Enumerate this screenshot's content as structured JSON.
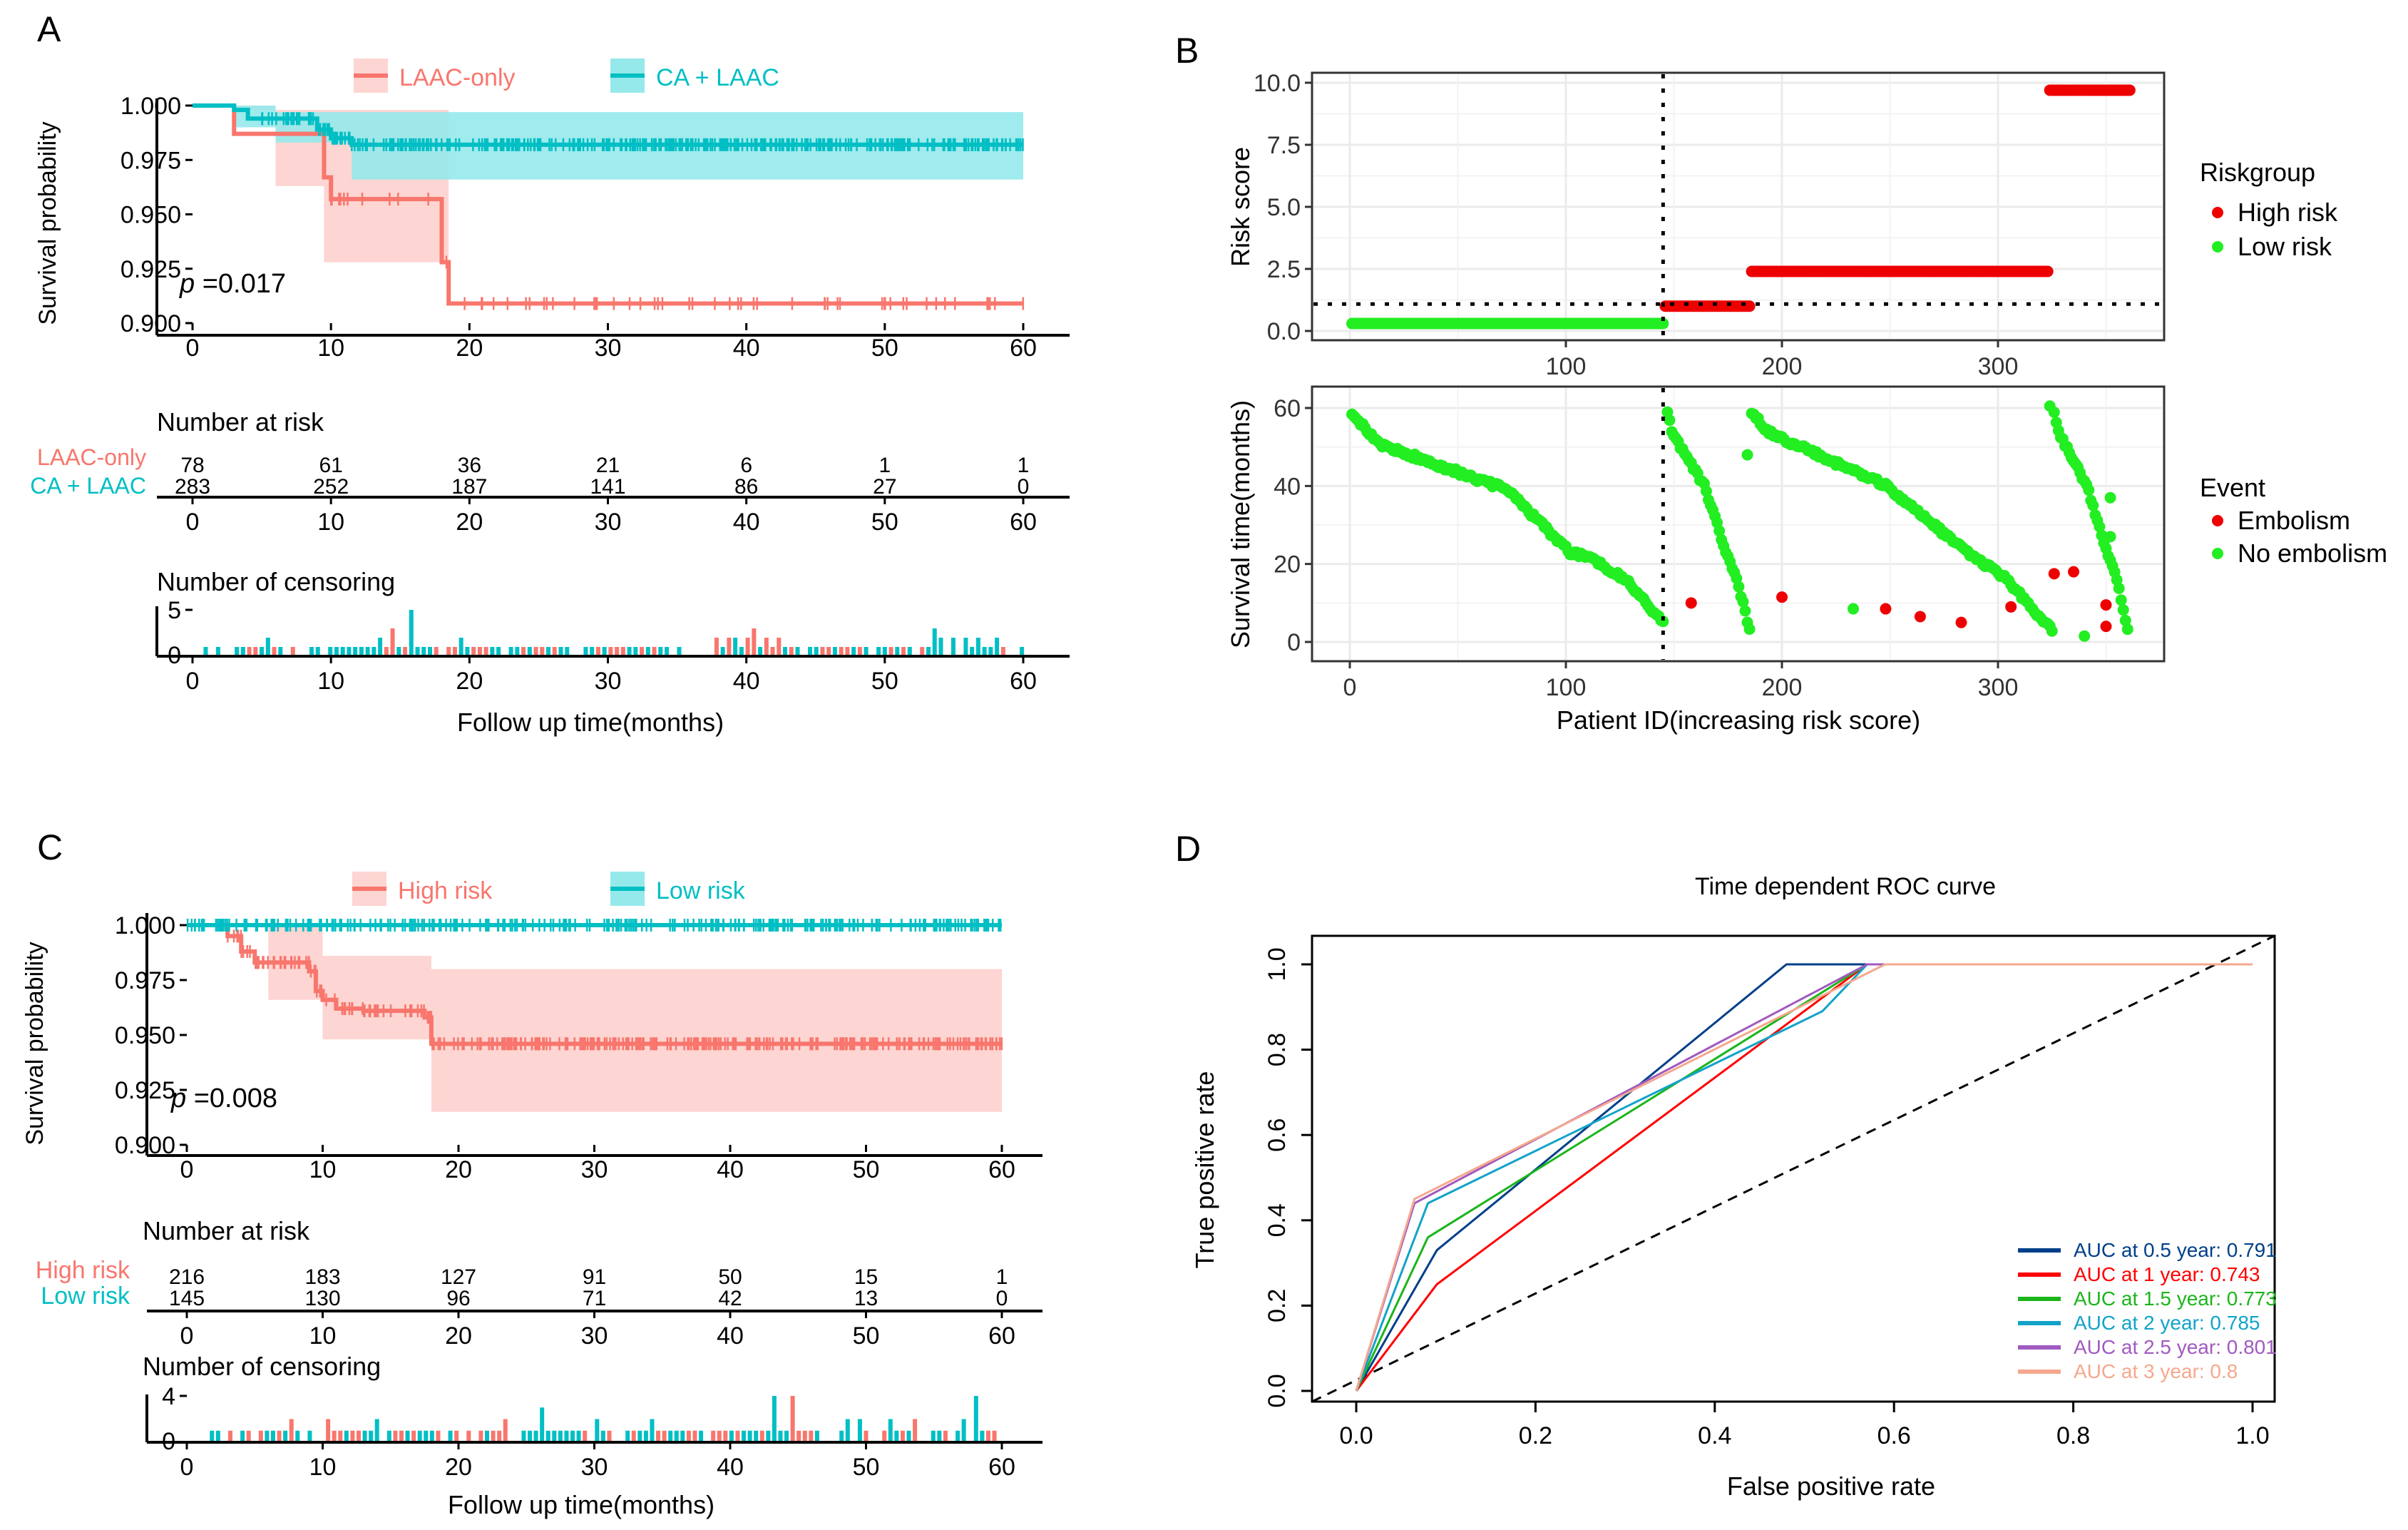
{
  "colors": {
    "red": "#F8766D",
    "red_band": "#FDD5D2",
    "cyan": "#00BFC4",
    "cyan_band": "#96E9EB",
    "risk_red": "#EE0000",
    "risk_green": "#22EE22",
    "dark": "#000000",
    "grid": "#EBEBEB",
    "roc_colors": [
      "#003F8A",
      "#FF0000",
      "#1BB51B",
      "#12A3C8",
      "#A05AC0",
      "#F5A88E"
    ]
  },
  "panels": {
    "A": {
      "label": "A",
      "legend": [
        "LAAC-only",
        "CA + LAAC"
      ],
      "ylabel": "Survival probability",
      "yticks": [
        "1.000",
        "0.975",
        "0.950",
        "0.925",
        "0.900"
      ],
      "xticks": [
        "0",
        "10",
        "20",
        "30",
        "40",
        "50",
        "60"
      ],
      "pvalue_prefix": "p",
      "pvalue_text": " =0.017",
      "risk_title": "Number at risk",
      "risk_rows": [
        {
          "name": "LAAC-only",
          "values": [
            "78",
            "61",
            "36",
            "21",
            "6",
            "1",
            "1"
          ]
        },
        {
          "name": "CA + LAAC",
          "values": [
            "283",
            "252",
            "187",
            "141",
            "86",
            "27",
            "0"
          ]
        }
      ],
      "censor_title": "Number of censoring",
      "censor_yticks": [
        "5",
        "0"
      ],
      "xlabel": "Follow up time(months)"
    },
    "B": {
      "label": "B",
      "top_ylabel": "Risk score",
      "top_yticks": [
        "10.0",
        "7.5",
        "5.0",
        "2.5",
        "0.0"
      ],
      "top_xticks": [
        "100",
        "200",
        "300"
      ],
      "bottom_ylabel": "Survival time(months)",
      "bottom_yticks": [
        "60",
        "40",
        "20",
        "0"
      ],
      "bottom_xticks": [
        "0",
        "100",
        "200",
        "300"
      ],
      "xlabel": "Patient ID(increasing risk score)",
      "legend1_title": "Riskgroup",
      "legend1": [
        "High risk",
        "Low risk"
      ],
      "legend2_title": "Event",
      "legend2": [
        "Embolism",
        "No embolism"
      ]
    },
    "C": {
      "label": "C",
      "legend": [
        "High risk",
        "Low risk"
      ],
      "ylabel": "Survival probability",
      "yticks": [
        "1.000",
        "0.975",
        "0.950",
        "0.925",
        "0.900"
      ],
      "xticks": [
        "0",
        "10",
        "20",
        "30",
        "40",
        "50",
        "60"
      ],
      "pvalue_prefix": "p",
      "pvalue_text": " =0.008",
      "risk_title": "Number at risk",
      "risk_rows": [
        {
          "name": "High risk",
          "values": [
            "216",
            "183",
            "127",
            "91",
            "50",
            "15",
            "1"
          ]
        },
        {
          "name": "Low risk",
          "values": [
            "145",
            "130",
            "96",
            "71",
            "42",
            "13",
            "0"
          ]
        }
      ],
      "censor_title": "Number of censoring",
      "censor_yticks": [
        "4",
        "0"
      ],
      "xlabel": "Follow up time(months)"
    },
    "D": {
      "label": "D",
      "title": "Time dependent ROC curve",
      "xlabel": "False positive rate",
      "ylabel": "True positive rate",
      "ticks": [
        "0.0",
        "0.2",
        "0.4",
        "0.6",
        "0.8",
        "1.0"
      ],
      "legend": [
        "AUC at 0.5 year: 0.791",
        "AUC at 1 year: 0.743",
        "AUC at 1.5 year: 0.773",
        "AUC at 2 year: 0.785",
        "AUC at 2.5 year: 0.801",
        "AUC at 3 year: 0.8"
      ]
    }
  },
  "chart_data": [
    {
      "panel": "A",
      "type": "line",
      "title": "",
      "xlabel": "Follow up time(months)",
      "ylabel": "Survival probability",
      "xlim": [
        0,
        60
      ],
      "ylim": [
        0.9,
        1.0
      ],
      "series": [
        {
          "name": "LAAC-only",
          "steps": [
            [
              0,
              1.0
            ],
            [
              3,
              0.987
            ],
            [
              9.5,
              0.967
            ],
            [
              10,
              0.957
            ],
            [
              18,
              0.928
            ],
            [
              18.5,
              0.909
            ],
            [
              60,
              0.909
            ]
          ],
          "ci_lower": [
            [
              0,
              1.0
            ],
            [
              6,
              0.963
            ],
            [
              9.5,
              0.928
            ],
            [
              18.5,
              0.909
            ],
            [
              60,
              0.909
            ]
          ],
          "ci_upper": [
            [
              0,
              1.0
            ],
            [
              3,
              0.998
            ],
            [
              18,
              0.998
            ],
            [
              18.5,
              0.909
            ],
            [
              60,
              0.909
            ]
          ]
        },
        {
          "name": "CA + LAAC",
          "steps": [
            [
              0,
              1.0
            ],
            [
              3,
              0.998
            ],
            [
              4,
              0.994
            ],
            [
              9,
              0.989
            ],
            [
              10,
              0.985
            ],
            [
              11.5,
              0.982
            ],
            [
              60,
              0.982
            ]
          ],
          "ci_lower": [
            [
              0,
              1.0
            ],
            [
              3,
              0.99
            ],
            [
              6,
              0.983
            ],
            [
              11.5,
              0.966
            ],
            [
              60,
              0.966
            ]
          ],
          "ci_upper": [
            [
              0,
              1.0
            ],
            [
              3,
              1.0
            ],
            [
              6,
              0.997
            ],
            [
              60,
              0.997
            ]
          ]
        }
      ],
      "p_value": 0.017,
      "number_at_risk": {
        "times": [
          0,
          10,
          20,
          30,
          40,
          50,
          60
        ],
        "LAAC-only": [
          78,
          61,
          36,
          21,
          6,
          1,
          1
        ],
        "CA + LAAC": [
          283,
          252,
          187,
          141,
          86,
          27,
          0
        ]
      },
      "censoring_ylim": [
        0,
        5
      ]
    },
    {
      "panel": "B",
      "type": "scatter",
      "title": "",
      "xlabel": "Patient ID(increasing risk score)",
      "risk_score": {
        "ylabel": "Risk score",
        "ylim": [
          0,
          10
        ],
        "cutoff": 1.0,
        "cutoff_patient": 145,
        "segments": [
          {
            "group": "Low risk",
            "from": 1,
            "to": 145,
            "score": 0.3
          },
          {
            "group": "High risk",
            "from": 146,
            "to": 185,
            "score": 1.0
          },
          {
            "group": "High risk",
            "from": 186,
            "to": 323,
            "score": 2.4
          },
          {
            "group": "High risk",
            "from": 324,
            "to": 361,
            "score": 9.7
          }
        ]
      },
      "survival_time": {
        "ylabel": "Survival time(months)",
        "ylim": [
          0,
          60
        ],
        "embolism_points": [
          [
            158,
            10
          ],
          [
            200,
            11.5
          ],
          [
            248,
            8.5
          ],
          [
            264,
            6.5
          ],
          [
            283,
            5
          ],
          [
            306,
            9
          ],
          [
            326,
            17.5
          ],
          [
            335,
            18
          ],
          [
            350,
            9.5
          ],
          [
            350,
            4
          ]
        ]
      }
    },
    {
      "panel": "C",
      "type": "line",
      "title": "",
      "xlabel": "Follow up time(months)",
      "ylabel": "Survival probability",
      "xlim": [
        0,
        60
      ],
      "ylim": [
        0.9,
        1.0
      ],
      "series": [
        {
          "name": "High risk",
          "steps": [
            [
              0,
              1.0
            ],
            [
              3,
              0.995
            ],
            [
              4,
              0.988
            ],
            [
              5,
              0.983
            ],
            [
              9,
              0.979
            ],
            [
              9.5,
              0.97
            ],
            [
              10,
              0.966
            ],
            [
              11,
              0.962
            ],
            [
              13,
              0.961
            ],
            [
              17.5,
              0.958
            ],
            [
              18,
              0.946
            ],
            [
              60,
              0.946
            ]
          ],
          "ci_lower": [
            [
              0,
              1.0
            ],
            [
              6,
              0.966
            ],
            [
              10,
              0.948
            ],
            [
              18,
              0.915
            ],
            [
              60,
              0.915
            ]
          ],
          "ci_upper": [
            [
              0,
              1.0
            ],
            [
              5,
              0.999
            ],
            [
              10,
              0.986
            ],
            [
              18,
              0.98
            ],
            [
              60,
              0.98
            ]
          ]
        },
        {
          "name": "Low risk",
          "steps": [
            [
              0,
              1.0
            ],
            [
              60,
              1.0
            ]
          ]
        }
      ],
      "p_value": 0.008,
      "number_at_risk": {
        "times": [
          0,
          10,
          20,
          30,
          40,
          50,
          60
        ],
        "High risk": [
          216,
          183,
          127,
          91,
          50,
          15,
          1
        ],
        "Low risk": [
          145,
          130,
          96,
          71,
          42,
          13,
          0
        ]
      },
      "censoring_ylim": [
        0,
        4
      ]
    },
    {
      "panel": "D",
      "type": "line",
      "title": "Time dependent ROC curve",
      "xlabel": "False positive rate",
      "ylabel": "True positive rate",
      "xlim": [
        0,
        1
      ],
      "ylim": [
        0,
        1
      ],
      "series": [
        {
          "name": "AUC at 0.5 year: 0.791",
          "points": [
            [
              0,
              0
            ],
            [
              0.09,
              0.33
            ],
            [
              0.48,
              1.0
            ],
            [
              1.0,
              1.0
            ]
          ]
        },
        {
          "name": "AUC at 1 year: 0.743",
          "points": [
            [
              0,
              0
            ],
            [
              0.09,
              0.25
            ],
            [
              0.57,
              1.0
            ],
            [
              1.0,
              1.0
            ]
          ]
        },
        {
          "name": "AUC at 1.5 year: 0.773",
          "points": [
            [
              0,
              0
            ],
            [
              0.08,
              0.36
            ],
            [
              0.57,
              1.0
            ],
            [
              1.0,
              1.0
            ]
          ]
        },
        {
          "name": "AUC at 2 year: 0.785",
          "points": [
            [
              0,
              0
            ],
            [
              0.08,
              0.44
            ],
            [
              0.52,
              0.89
            ],
            [
              0.57,
              1.0
            ],
            [
              1.0,
              1.0
            ]
          ]
        },
        {
          "name": "AUC at 2.5 year: 0.801",
          "points": [
            [
              0,
              0
            ],
            [
              0.065,
              0.44
            ],
            [
              0.57,
              1.0
            ],
            [
              1.0,
              1.0
            ]
          ]
        },
        {
          "name": "AUC at 3 year: 0.8",
          "points": [
            [
              0,
              0
            ],
            [
              0.065,
              0.45
            ],
            [
              0.59,
              1.0
            ],
            [
              1.0,
              1.0
            ]
          ]
        }
      ]
    }
  ]
}
